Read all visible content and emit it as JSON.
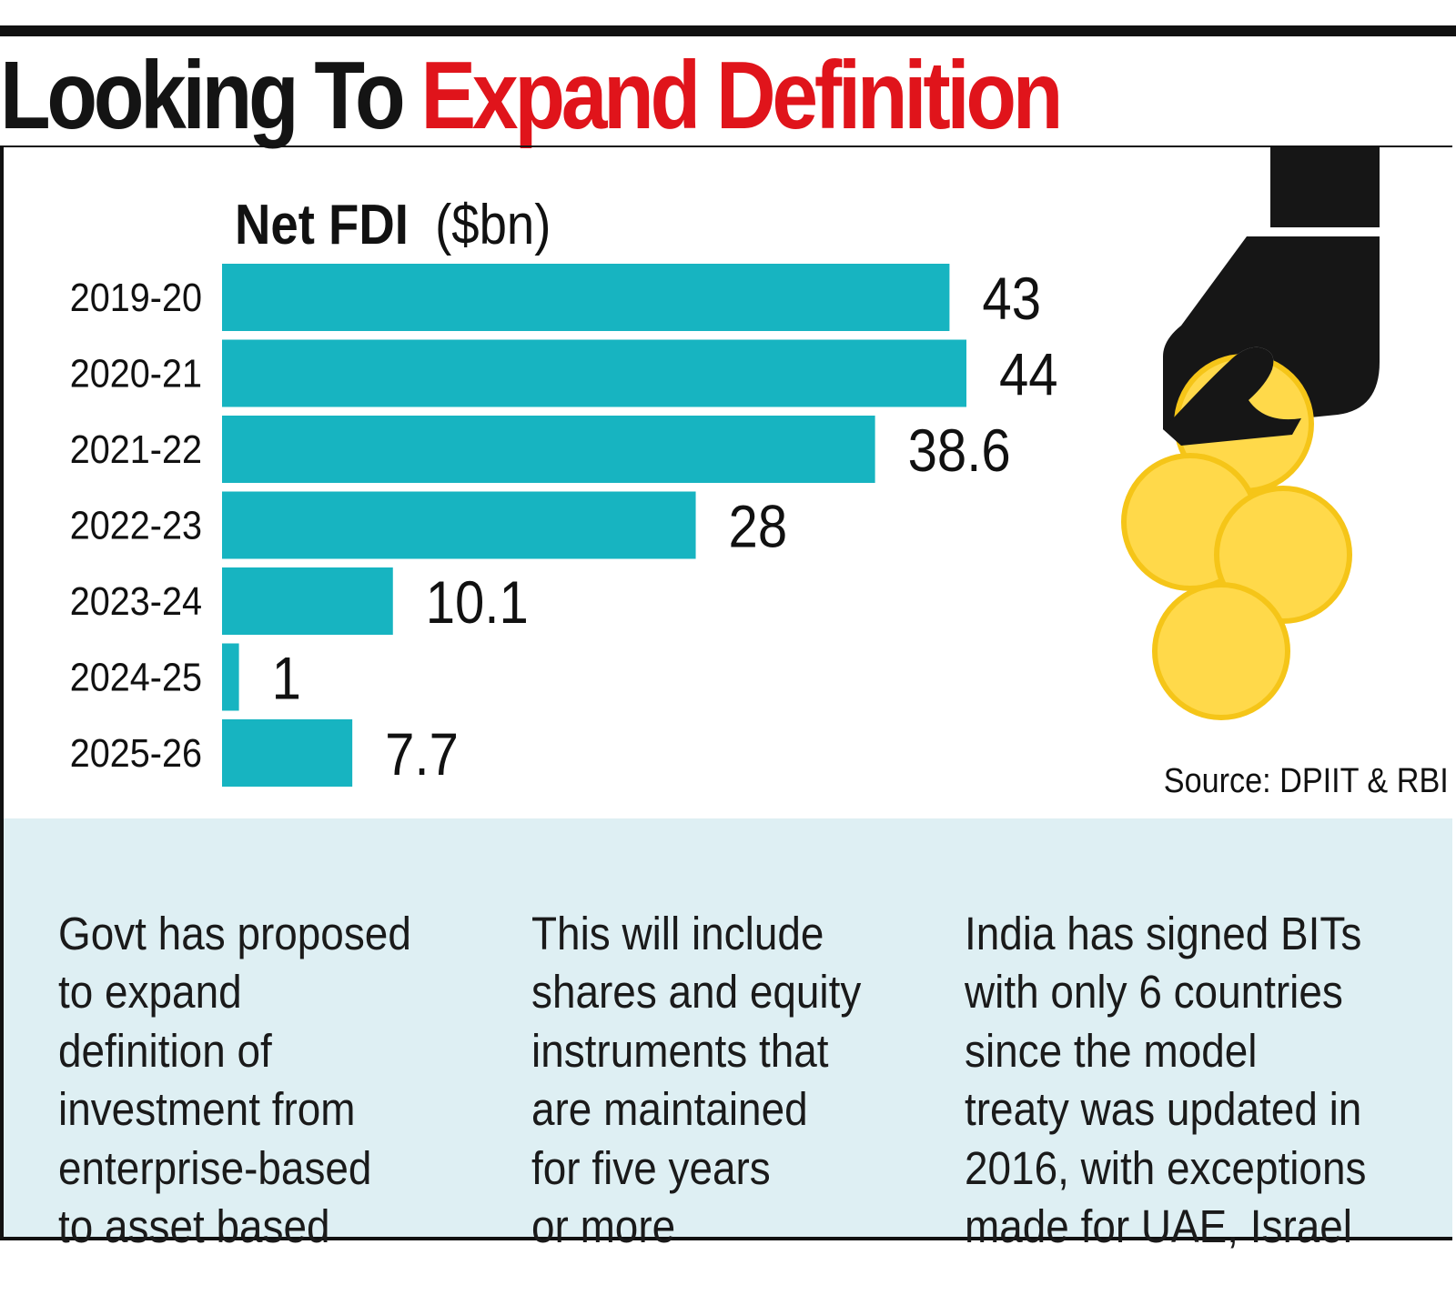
{
  "headline": {
    "part1": "Looking To",
    "part2": "Expand Definition"
  },
  "colors": {
    "accent_red": "#e0141b",
    "bar": "#17b4c1",
    "notes_bg": "#deeff3",
    "coin": "#ffd94a",
    "coin_edge": "#f5c518",
    "hand": "#161616"
  },
  "chart_data": {
    "type": "bar",
    "orientation": "horizontal",
    "title": "Net FDI",
    "unit": "($bn)",
    "categories": [
      "2019-20",
      "2020-21",
      "2021-22",
      "2022-23",
      "2023-24",
      "2024-25",
      "2025-26"
    ],
    "values": [
      43,
      44,
      38.6,
      28,
      10.1,
      1,
      7.7
    ],
    "value_labels": [
      "43",
      "44",
      "38.6",
      "28",
      "10.1",
      "1",
      "7.7"
    ],
    "xlim": [
      0,
      44
    ],
    "grid": false,
    "legend": "none"
  },
  "source": "Source: DPIIT & RBI",
  "notes": [
    "Govt has proposed\nto expand\ndefinition of\ninvestment from\nenterprise-based\nto asset based",
    "This will include\nshares and equity\ninstruments that\nare maintained\nfor five years\nor more",
    "India has signed BITs\nwith only 6 countries\nsince the model\ntreaty was updated in\n2016, with exceptions\nmade for UAE, Israel"
  ],
  "illustration": {
    "hand_icon": "hand-icon",
    "coin_icon": "coin-icon"
  }
}
